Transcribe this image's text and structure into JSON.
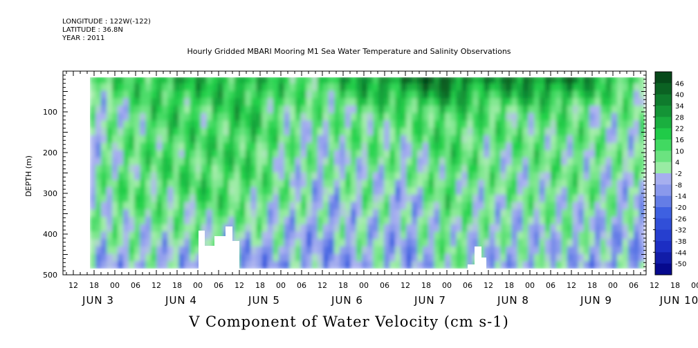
{
  "header": {
    "longitude": "LONGITUDE : 122W(-122)",
    "latitude": "LATITUDE : 36.8N",
    "year": "YEAR : 2011"
  },
  "colors": {
    "strong_negative": "#000080",
    "negative": "#3a5de0",
    "weak_negative": "#aab4ee",
    "weak_positive": "#a8eeae",
    "positive": "#22d24a",
    "strong_positive": "#053d15",
    "nodata": "#ffffff"
  },
  "chart_data": {
    "type": "heatmap",
    "title": "Hourly Gridded MBARI Mooring M1 Sea Water Temperature and Salinity Observations",
    "subtitle": "V Component of Water Velocity (cm s-1)",
    "ylabel": "DEPTH (m)",
    "xlabel": "",
    "x_range": [
      "JUN 2 08:00",
      "JUN 10 12:00"
    ],
    "data_x_range": [
      "JUN 2 18:00",
      "JUN 10 10:00"
    ],
    "ylim": [
      500,
      0
    ],
    "y_axis": "depth, increasing downward",
    "y_ticks": [
      100,
      200,
      300,
      400,
      500
    ],
    "x_hour_tick_labels": [
      "12",
      "18",
      "00",
      "06",
      "12",
      "18",
      "00",
      "06",
      "12",
      "18",
      "00",
      "06",
      "12",
      "18",
      "00",
      "06",
      "12",
      "18",
      "00",
      "06",
      "12",
      "18",
      "00",
      "06",
      "12",
      "18",
      "00",
      "06",
      "12",
      "18",
      "00",
      "06"
    ],
    "x_day_labels": [
      "JUN 3",
      "JUN 4",
      "JUN 5",
      "JUN 6",
      "JUN 7",
      "JUN 8",
      "JUN 9",
      "JUN 10"
    ],
    "colorbar": {
      "min": -50,
      "max": 50,
      "labels": [
        46,
        40,
        34,
        28,
        22,
        16,
        10,
        4,
        -2,
        -8,
        -14,
        -20,
        -26,
        -32,
        -38,
        -44,
        -50
      ]
    },
    "depth_levels": [
      20,
      100,
      200,
      300,
      400,
      480
    ],
    "columns_day": [
      "JUN 3 00h",
      "JUN 3 12h",
      "JUN 4 00h",
      "JUN 4 12h",
      "JUN 5 00h",
      "JUN 5 12h",
      "JUN 6 00h",
      "JUN 6 12h",
      "JUN 7 00h",
      "JUN 7 12h",
      "JUN 8 00h",
      "JUN 8 12h",
      "JUN 9 00h",
      "JUN 9 12h",
      "JUN 10 00h"
    ],
    "v_values_cm_s": [
      [
        -4,
        4,
        -2,
        6
      ],
      [
        -2,
        10,
        6,
        16
      ],
      [
        -4,
        10,
        16,
        22
      ],
      [
        -4,
        14,
        12,
        22
      ],
      [
        -8,
        10,
        20,
        22
      ],
      [
        -6,
        4,
        6,
        14
      ],
      [
        -8,
        -2,
        6,
        16
      ],
      [
        -2,
        4,
        10,
        28
      ],
      [
        -8,
        -2,
        10,
        34
      ],
      [
        4,
        10,
        16,
        40
      ],
      [
        -2,
        4,
        10,
        28
      ],
      [
        -4,
        4,
        10,
        34
      ],
      [
        -2,
        6,
        10,
        34
      ],
      [
        -8,
        4,
        4,
        22
      ],
      [
        -6,
        -2,
        6,
        10
      ]
    ],
    "notes": "Rows of v_values_cm_s are columns in time; each holds velocity at depths 480, 300, 100, 20 m (approximate). Positive (green) = northward, negative (blue) = southward. White regions: no data below ~390 m around JUN 5 00h-12h and ~430 m near JUN 8 06h."
  }
}
